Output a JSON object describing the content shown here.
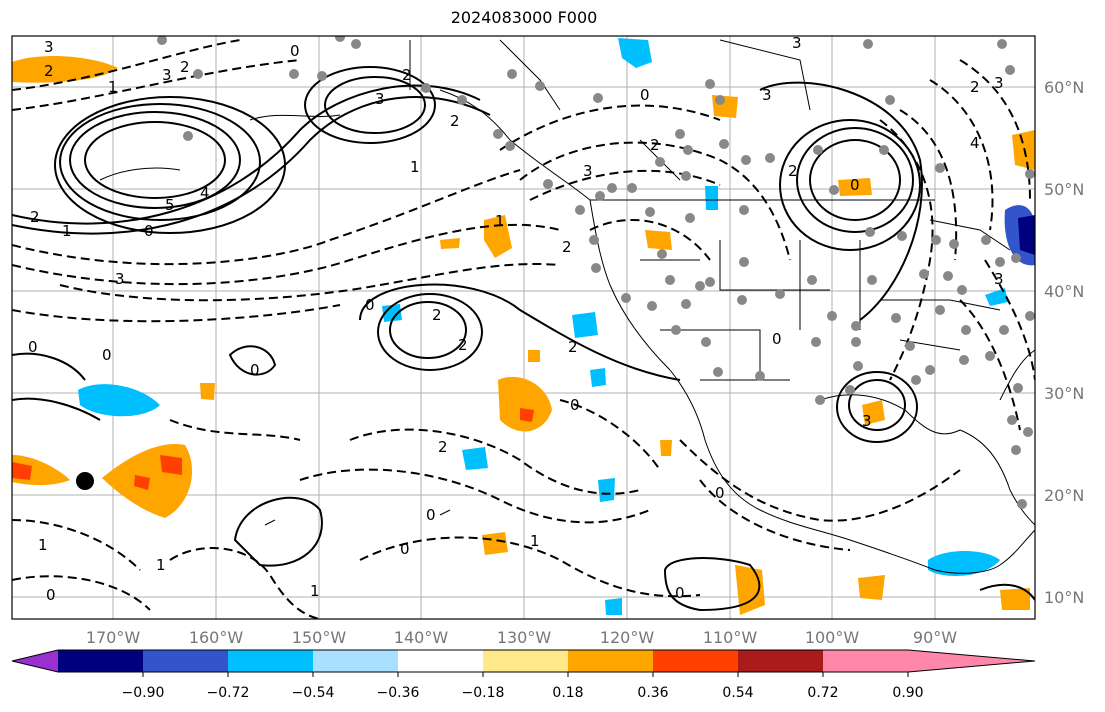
{
  "title": "2024083000 F000",
  "lat_labels": [
    "60°N",
    "50°N",
    "40°N",
    "30°N",
    "20°N",
    "10°N"
  ],
  "lon_labels": [
    "170°W",
    "160°W",
    "150°W",
    "140°W",
    "130°W",
    "120°W",
    "110°W",
    "100°W",
    "90°W"
  ],
  "colorbar": {
    "colors": [
      "#9b30d0",
      "#00007f",
      "#3355cc",
      "#00bfff",
      "#aae0ff",
      "#ffffff",
      "#ffe88a",
      "#ffa500",
      "#ff4000",
      "#aa1c1c",
      "#ff88aa"
    ],
    "tick_labels": [
      "−0.90",
      "−0.72",
      "−0.54",
      "−0.36",
      "−0.18",
      "0.18",
      "0.36",
      "0.54",
      "0.72",
      "0.90"
    ]
  },
  "contour_labels": [
    "3",
    "2",
    "0",
    "1",
    "2",
    "3",
    "3",
    "2",
    "1",
    "5",
    "4",
    "2",
    "1",
    "0",
    "3",
    "2",
    "3",
    "1",
    "0",
    "2",
    "3",
    "3",
    "2",
    "2",
    "0",
    "2",
    "3",
    "4",
    "0",
    "0",
    "0",
    "2",
    "0",
    "2",
    "2",
    "0",
    "0",
    "0",
    "1",
    "1",
    "0",
    "0",
    "0",
    "1",
    "1",
    "0",
    "3",
    "3",
    "2"
  ]
}
